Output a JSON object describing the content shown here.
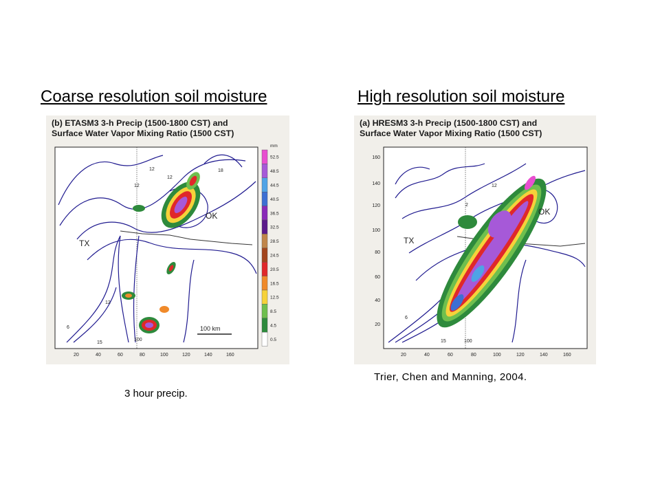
{
  "headings": {
    "left": "Coarse resolution soil moisture",
    "right": "High resolution soil moisture"
  },
  "panels": {
    "left": {
      "title_line1": "(b) ETASM3 3-h Precip (1500-1800 CST) and",
      "title_line2": "Surface Water Vapor Mixing Ratio (1500 CST)",
      "x_ticks": [
        "20",
        "40",
        "60",
        "80",
        "100",
        "120",
        "140",
        "160"
      ],
      "state_labels": [
        "TX",
        "OK"
      ],
      "contour_labels": [
        "12",
        "12",
        "12",
        "18",
        "12",
        "6",
        "15",
        "100"
      ],
      "scale_bar": "100 km",
      "colorbar_unit": "mm",
      "colorbar_values": [
        "52.5",
        "48.5",
        "44.5",
        "40.5",
        "36.5",
        "32.5",
        "28.5",
        "24.5",
        "20.5",
        "16.5",
        "12.5",
        "8.5",
        "4.5",
        "0.5"
      ],
      "colorbar_colors": [
        "#e84fd0",
        "#a659d8",
        "#4fa3e6",
        "#3d6fd3",
        "#8a2ab8",
        "#5a1a8a",
        "#c0864a",
        "#a2451c",
        "#e0282a",
        "#f08a2a",
        "#f6d23a",
        "#6fbf4e",
        "#2e8a3c",
        "#ffffff"
      ]
    },
    "right": {
      "title_line1": "(a) HRESM3 3-h Precip (1500-1800 CST) and",
      "title_line2": "Surface Water Vapor Mixing Ratio (1500 CST)",
      "x_ticks": [
        "20",
        "40",
        "60",
        "80",
        "100",
        "120",
        "140",
        "160"
      ],
      "y_ticks": [
        "160",
        "140",
        "120",
        "100",
        "80",
        "60",
        "40",
        "20"
      ],
      "state_labels": [
        "TX",
        "OK"
      ],
      "contour_labels": [
        "12",
        "2",
        "6",
        "15",
        "100"
      ]
    }
  },
  "captions": {
    "left": "3 hour precip.",
    "right": "Trier, Chen and Manning, 2004."
  }
}
